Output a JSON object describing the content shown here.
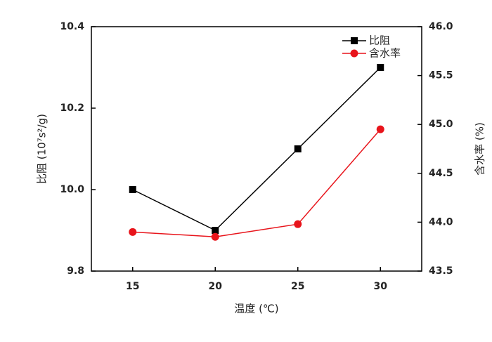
{
  "chart_data": {
    "type": "line",
    "x_label": "温度 (℃)",
    "y_label": "比阻 (10⁷s²/g)",
    "y2_label": "含水率 (%)",
    "x": [
      15,
      20,
      25,
      30
    ],
    "xlim": [
      12.5,
      32.5
    ],
    "xticks": [
      15,
      20,
      25,
      30
    ],
    "ylim": [
      9.8,
      10.4
    ],
    "yticks": [
      9.8,
      {
        "value": 10.0,
        "label": "10.0"
      },
      10.2,
      10.4
    ],
    "y2lim": [
      43.5,
      46.0
    ],
    "y2ticks": [
      43.5,
      {
        "value": 44.0,
        "label": "44.0"
      },
      44.5,
      {
        "value": 45.0,
        "label": "45.0"
      },
      45.5,
      {
        "value": 46.0,
        "label": "46.0"
      }
    ],
    "legend": "upper right",
    "series": [
      {
        "name": "比阻",
        "color": "#000000",
        "marker": "square",
        "values": [
          10.0,
          9.9,
          10.1,
          10.3
        ]
      },
      {
        "name": "含水率",
        "color": "#e8141b",
        "marker": "circle",
        "axis": "y2",
        "values": [
          43.9,
          43.85,
          43.98,
          44.95
        ]
      }
    ]
  }
}
